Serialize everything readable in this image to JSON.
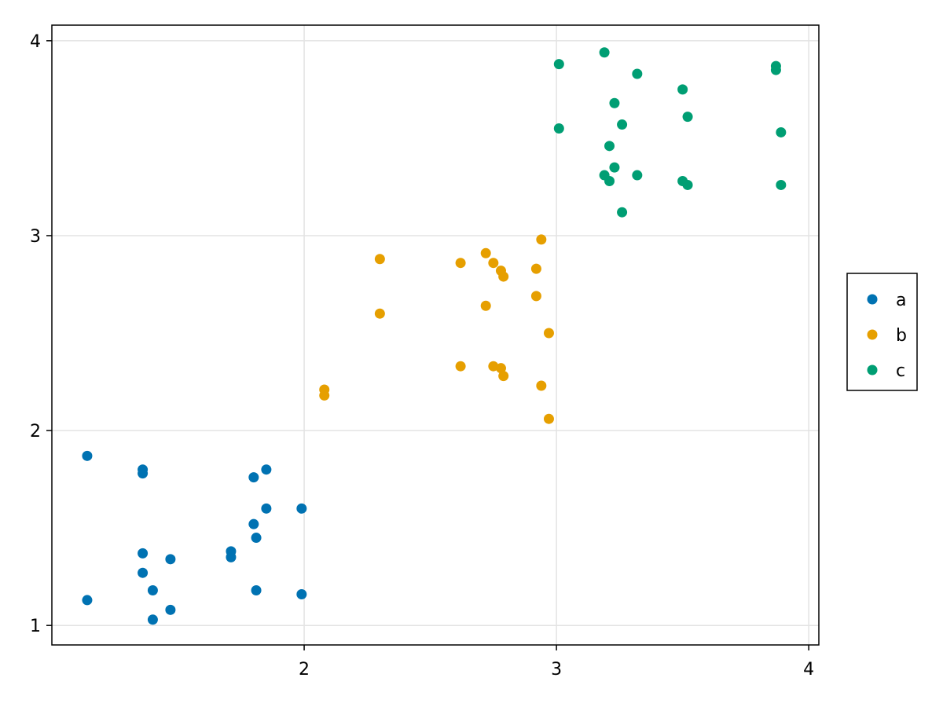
{
  "chart_data": {
    "type": "scatter",
    "title": "",
    "xlabel": "",
    "ylabel": "",
    "xlim": [
      1.0,
      4.04
    ],
    "ylim": [
      0.9,
      4.08
    ],
    "xticks": [
      2,
      3,
      4
    ],
    "yticks": [
      1,
      2,
      3,
      4
    ],
    "xtick_labels": [
      "2",
      "3",
      "4"
    ],
    "ytick_labels": [
      "1",
      "2",
      "3",
      "4"
    ],
    "grid": true,
    "legend_position": "right",
    "series": [
      {
        "name": "a",
        "color": "#0072b2",
        "points": [
          [
            1.14,
            1.87
          ],
          [
            1.14,
            1.13
          ],
          [
            1.36,
            1.8
          ],
          [
            1.36,
            1.78
          ],
          [
            1.36,
            1.37
          ],
          [
            1.36,
            1.27
          ],
          [
            1.4,
            1.18
          ],
          [
            1.4,
            1.03
          ],
          [
            1.47,
            1.34
          ],
          [
            1.47,
            1.08
          ],
          [
            1.71,
            1.38
          ],
          [
            1.71,
            1.35
          ],
          [
            1.8,
            1.76
          ],
          [
            1.8,
            1.52
          ],
          [
            1.81,
            1.45
          ],
          [
            1.81,
            1.18
          ],
          [
            1.85,
            1.8
          ],
          [
            1.85,
            1.6
          ],
          [
            1.99,
            1.6
          ],
          [
            1.99,
            1.16
          ]
        ]
      },
      {
        "name": "b",
        "color": "#e69f00",
        "points": [
          [
            2.08,
            2.21
          ],
          [
            2.08,
            2.18
          ],
          [
            2.3,
            2.88
          ],
          [
            2.3,
            2.6
          ],
          [
            2.62,
            2.86
          ],
          [
            2.62,
            2.33
          ],
          [
            2.72,
            2.91
          ],
          [
            2.72,
            2.64
          ],
          [
            2.75,
            2.86
          ],
          [
            2.75,
            2.33
          ],
          [
            2.78,
            2.82
          ],
          [
            2.78,
            2.32
          ],
          [
            2.79,
            2.79
          ],
          [
            2.79,
            2.28
          ],
          [
            2.92,
            2.83
          ],
          [
            2.92,
            2.69
          ],
          [
            2.94,
            2.98
          ],
          [
            2.94,
            2.23
          ],
          [
            2.97,
            2.5
          ],
          [
            2.97,
            2.06
          ]
        ]
      },
      {
        "name": "c",
        "color": "#009e73",
        "points": [
          [
            3.01,
            3.88
          ],
          [
            3.01,
            3.55
          ],
          [
            3.19,
            3.94
          ],
          [
            3.19,
            3.31
          ],
          [
            3.21,
            3.46
          ],
          [
            3.21,
            3.28
          ],
          [
            3.23,
            3.68
          ],
          [
            3.23,
            3.35
          ],
          [
            3.26,
            3.57
          ],
          [
            3.26,
            3.12
          ],
          [
            3.32,
            3.83
          ],
          [
            3.32,
            3.31
          ],
          [
            3.5,
            3.75
          ],
          [
            3.5,
            3.28
          ],
          [
            3.52,
            3.61
          ],
          [
            3.52,
            3.26
          ],
          [
            3.87,
            3.87
          ],
          [
            3.87,
            3.85
          ],
          [
            3.89,
            3.53
          ],
          [
            3.89,
            3.26
          ]
        ]
      }
    ]
  }
}
